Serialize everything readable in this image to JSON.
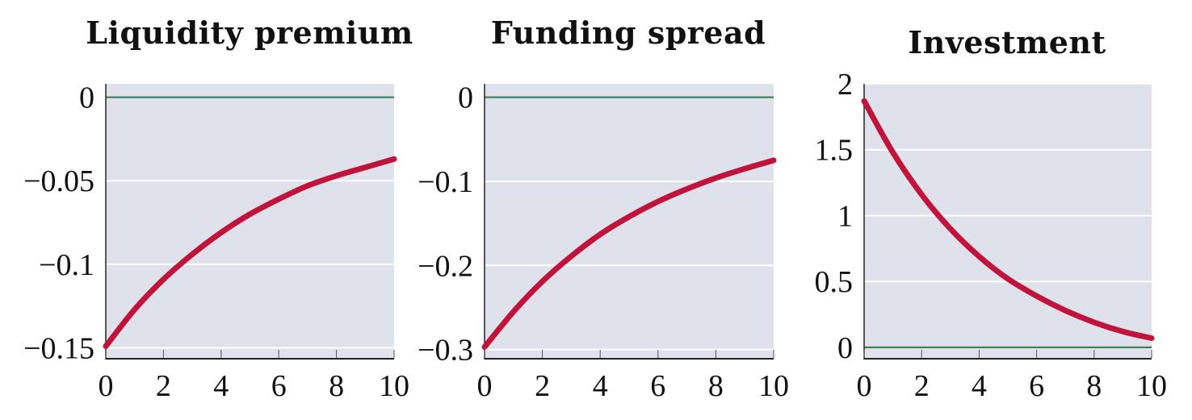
{
  "chart_data": [
    {
      "type": "line",
      "title": "Liquidity premium",
      "xlabel": "",
      "ylabel": "",
      "xlim": [
        0,
        10
      ],
      "ylim": [
        -0.156,
        0.008
      ],
      "xticks": [
        0,
        2,
        4,
        6,
        8,
        10
      ],
      "xtick_labels": [
        "0",
        "2",
        "4",
        "6",
        "8",
        "10"
      ],
      "yticks": [
        0,
        -0.05,
        -0.1,
        -0.15
      ],
      "ytick_labels": [
        "0",
        "−0.05",
        "−0.1",
        "−0.15"
      ],
      "grid": true,
      "zero_line": true,
      "series": [
        {
          "x": [
            0,
            1,
            2,
            3,
            4,
            5,
            6,
            7,
            8,
            9,
            10
          ],
          "values": [
            -0.149,
            -0.127,
            -0.109,
            -0.094,
            -0.081,
            -0.07,
            -0.061,
            -0.053,
            -0.047,
            -0.042,
            -0.037
          ]
        }
      ]
    },
    {
      "type": "line",
      "title": "Funding spread",
      "xlabel": "",
      "ylabel": "",
      "xlim": [
        0,
        10
      ],
      "ylim": [
        -0.31,
        0.016
      ],
      "xticks": [
        0,
        2,
        4,
        6,
        8,
        10
      ],
      "xtick_labels": [
        "0",
        "2",
        "4",
        "6",
        "8",
        "10"
      ],
      "yticks": [
        0,
        -0.1,
        -0.2,
        -0.3
      ],
      "ytick_labels": [
        "0",
        "−0.1",
        "−0.2",
        "−0.3"
      ],
      "grid": true,
      "zero_line": true,
      "series": [
        {
          "x": [
            0,
            1,
            2,
            3,
            4,
            5,
            6,
            7,
            8,
            9,
            10
          ],
          "values": [
            -0.297,
            -0.255,
            -0.219,
            -0.189,
            -0.163,
            -0.142,
            -0.124,
            -0.109,
            -0.096,
            -0.085,
            -0.075
          ]
        }
      ]
    },
    {
      "type": "line",
      "title": "Investment",
      "xlabel": "",
      "ylabel": "",
      "xlim": [
        0,
        10
      ],
      "ylim": [
        -0.08,
        2.0
      ],
      "xticks": [
        0,
        2,
        4,
        6,
        8,
        10
      ],
      "xtick_labels": [
        "0",
        "2",
        "4",
        "6",
        "8",
        "10"
      ],
      "yticks": [
        0,
        0.5,
        1,
        1.5,
        2
      ],
      "ytick_labels": [
        "0",
        "0.5",
        "1",
        "1.5",
        "2"
      ],
      "grid": true,
      "zero_line": true,
      "series": [
        {
          "x": [
            0,
            1,
            2,
            3,
            4,
            5,
            6,
            7,
            8,
            9,
            10
          ],
          "values": [
            1.87,
            1.48,
            1.16,
            0.9,
            0.69,
            0.52,
            0.39,
            0.28,
            0.19,
            0.12,
            0.07
          ]
        }
      ]
    }
  ],
  "colors": {
    "plot_background": "#dfe1eb",
    "grid": "#ffffff",
    "zero_line": "#2e7d4f",
    "series_line": "#c0143c",
    "axis": "#222222"
  }
}
